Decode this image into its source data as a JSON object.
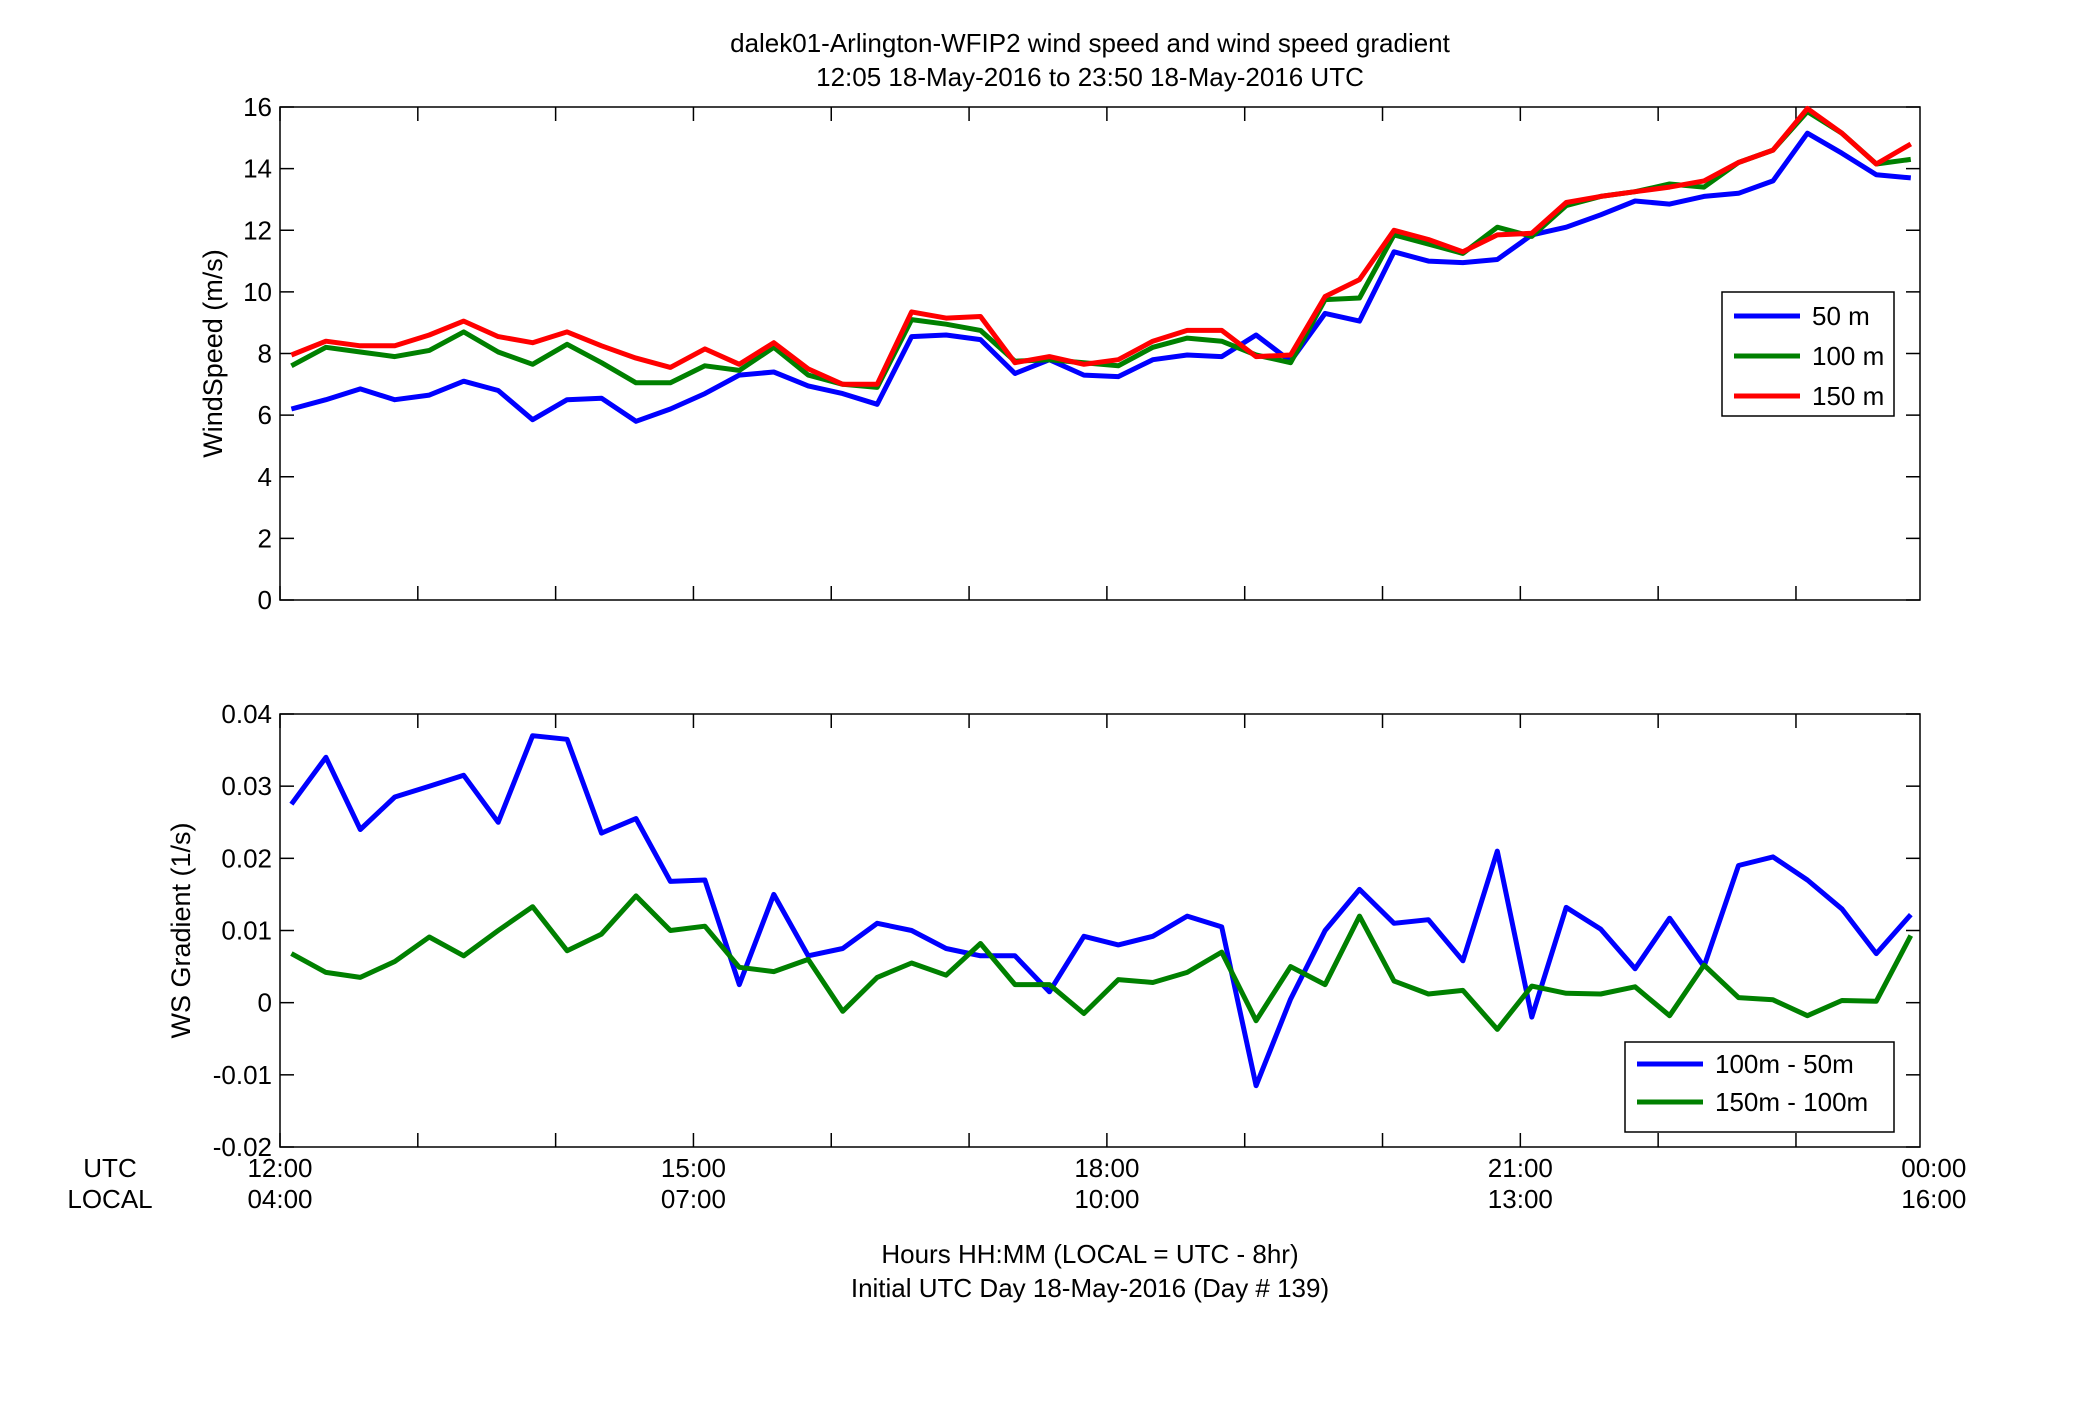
{
  "figure": {
    "title_line1": "dalek01-Arlington-WFIP2  wind speed and wind speed gradient",
    "title_line2": "12:05 18-May-2016 to 23:50 18-May-2016  UTC",
    "xlabel_line1": "Hours HH:MM  (LOCAL = UTC - 8hr)",
    "xlabel_line2": "Initial UTC Day 18-May-2016 (Day # 139)",
    "row_label_utc": "UTC",
    "row_label_local": "LOCAL",
    "utc_ticks": [
      "12:00",
      "15:00",
      "18:00",
      "21:00",
      "00:00"
    ],
    "local_ticks": [
      "04:00",
      "07:00",
      "10:00",
      "13:00",
      "16:00"
    ]
  },
  "chart_data": [
    {
      "type": "line",
      "ylabel": "WindSpeed (m/s)",
      "xlim": [
        12.0,
        23.9
      ],
      "ylim": [
        0,
        16
      ],
      "yticks": [
        0,
        2,
        4,
        6,
        8,
        10,
        12,
        14,
        16
      ],
      "ytick_labels": [
        "0",
        "2",
        "4",
        "6",
        "8",
        "10",
        "12",
        "14",
        "16"
      ],
      "grid": false,
      "legend_position": "right",
      "x_hours": [
        12.083,
        12.333,
        12.583,
        12.833,
        13.083,
        13.333,
        13.583,
        13.833,
        14.083,
        14.333,
        14.583,
        14.833,
        15.083,
        15.333,
        15.583,
        15.833,
        16.083,
        16.333,
        16.583,
        16.833,
        17.083,
        17.333,
        17.583,
        17.833,
        18.083,
        18.333,
        18.583,
        18.833,
        19.083,
        19.333,
        19.583,
        19.833,
        20.083,
        20.333,
        20.583,
        20.833,
        21.083,
        21.333,
        21.583,
        21.833,
        22.083,
        22.333,
        22.583,
        22.833,
        23.083,
        23.333,
        23.583,
        23.833
      ],
      "series": [
        {
          "name": "50 m",
          "color": "#0000ff",
          "values": [
            6.2,
            6.5,
            6.85,
            6.5,
            6.65,
            7.1,
            6.8,
            5.85,
            6.5,
            6.55,
            5.8,
            6.2,
            6.7,
            7.3,
            7.4,
            6.95,
            6.7,
            6.35,
            8.55,
            8.6,
            8.45,
            7.35,
            7.8,
            7.3,
            7.25,
            7.8,
            7.95,
            7.9,
            8.6,
            7.75,
            9.3,
            9.05,
            11.3,
            11.0,
            10.95,
            11.05,
            11.85,
            12.1,
            12.5,
            12.95,
            12.85,
            13.1,
            13.2,
            13.6,
            15.15,
            14.5,
            13.8,
            13.7
          ]
        },
        {
          "name": "100 m",
          "color": "#008000",
          "values": [
            7.6,
            8.2,
            8.05,
            7.9,
            8.1,
            8.7,
            8.05,
            7.65,
            8.3,
            7.7,
            7.05,
            7.05,
            7.6,
            7.45,
            8.2,
            7.3,
            7.0,
            6.9,
            9.1,
            8.95,
            8.75,
            7.75,
            7.8,
            7.7,
            7.6,
            8.2,
            8.5,
            8.4,
            7.95,
            7.7,
            9.75,
            9.8,
            11.85,
            11.55,
            11.25,
            12.1,
            11.8,
            12.8,
            13.1,
            13.25,
            13.5,
            13.4,
            14.2,
            14.6,
            15.85,
            15.15,
            14.15,
            14.3
          ]
        },
        {
          "name": "150 m",
          "color": "#ff0000",
          "values": [
            7.95,
            8.4,
            8.25,
            8.25,
            8.6,
            9.05,
            8.55,
            8.35,
            8.7,
            8.25,
            7.85,
            7.55,
            8.15,
            7.65,
            8.35,
            7.5,
            7.0,
            7.0,
            9.35,
            9.15,
            9.2,
            7.7,
            7.9,
            7.65,
            7.8,
            8.4,
            8.75,
            8.75,
            7.9,
            7.95,
            9.85,
            10.4,
            12.0,
            11.7,
            11.3,
            11.85,
            11.9,
            12.9,
            13.1,
            13.25,
            13.4,
            13.6,
            14.2,
            14.6,
            15.95,
            15.15,
            14.15,
            14.8
          ]
        }
      ]
    },
    {
      "type": "line",
      "ylabel": "WS Gradient (1/s)",
      "xlim": [
        12.0,
        23.9
      ],
      "ylim": [
        -0.02,
        0.04
      ],
      "yticks": [
        -0.02,
        -0.01,
        0,
        0.01,
        0.02,
        0.03,
        0.04
      ],
      "ytick_labels": [
        "-0.02",
        "-0.01",
        "0",
        "0.01",
        "0.02",
        "0.03",
        "0.04"
      ],
      "grid": false,
      "legend_position": "bottom-right",
      "x_hours": [
        12.083,
        12.333,
        12.583,
        12.833,
        13.083,
        13.333,
        13.583,
        13.833,
        14.083,
        14.333,
        14.583,
        14.833,
        15.083,
        15.333,
        15.583,
        15.833,
        16.083,
        16.333,
        16.583,
        16.833,
        17.083,
        17.333,
        17.583,
        17.833,
        18.083,
        18.333,
        18.583,
        18.833,
        19.083,
        19.333,
        19.583,
        19.833,
        20.083,
        20.333,
        20.583,
        20.833,
        21.083,
        21.333,
        21.583,
        21.833,
        22.083,
        22.333,
        22.583,
        22.833,
        23.083,
        23.333,
        23.583,
        23.833
      ],
      "series": [
        {
          "name": "100m - 50m",
          "color": "#0000ff",
          "values": [
            0.0275,
            0.034,
            0.024,
            0.0285,
            0.03,
            0.0315,
            0.025,
            0.037,
            0.0365,
            0.0235,
            0.0255,
            0.0168,
            0.017,
            0.0025,
            0.015,
            0.0065,
            0.0075,
            0.011,
            0.01,
            0.0075,
            0.0065,
            0.0065,
            0.0015,
            0.0092,
            0.008,
            0.0092,
            0.012,
            0.0105,
            -0.0115,
            0.0005,
            0.01,
            0.0157,
            0.011,
            0.0115,
            0.0058,
            0.021,
            -0.002,
            0.0132,
            0.0102,
            0.0047,
            0.0117,
            0.005,
            0.019,
            0.0202,
            0.017,
            0.013,
            0.0068,
            0.0122
          ]
        },
        {
          "name": "150m - 100m",
          "color": "#008000",
          "values": [
            0.0068,
            0.0042,
            0.0035,
            0.0057,
            0.0091,
            0.0065,
            0.01,
            0.0133,
            0.0072,
            0.0095,
            0.0148,
            0.01,
            0.0106,
            0.0049,
            0.0043,
            0.006,
            -0.0012,
            0.0035,
            0.0055,
            0.0038,
            0.0082,
            0.0025,
            0.0025,
            -0.0015,
            0.0032,
            0.0028,
            0.0042,
            0.007,
            -0.0025,
            0.005,
            0.0025,
            0.012,
            0.003,
            0.0012,
            0.0017,
            -0.0037,
            0.0023,
            0.0013,
            0.0012,
            0.0022,
            -0.0018,
            0.0052,
            0.0007,
            0.0004,
            -0.0018,
            0.0003,
            0.0002,
            0.0093
          ]
        }
      ]
    }
  ]
}
